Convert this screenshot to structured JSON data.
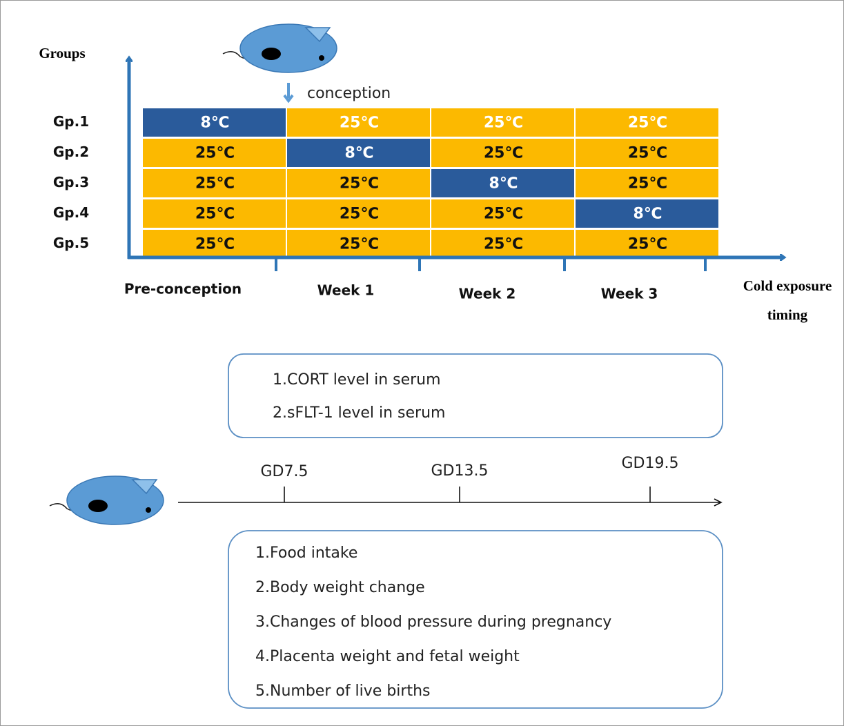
{
  "axes": {
    "y_label": "Groups",
    "x_label_lines": [
      "Cold exposure",
      "timing"
    ]
  },
  "conception": "conception",
  "groups": [
    "Gp.1",
    "Gp.2",
    "Gp.3",
    "Gp.4",
    "Gp.5"
  ],
  "periods": [
    "Pre-conception",
    "Week 1",
    "Week 2",
    "Week 3"
  ],
  "cells": [
    [
      {
        "text": "8℃",
        "fill": "#2a5b9b",
        "text_color": "#ffffff"
      },
      {
        "text": "25℃",
        "fill": "#fcb900",
        "text_color": "#ffffff"
      },
      {
        "text": "25℃",
        "fill": "#fcb900",
        "text_color": "#ffffff"
      },
      {
        "text": "25℃",
        "fill": "#fcb900",
        "text_color": "#ffffff"
      }
    ],
    [
      {
        "text": "25℃",
        "fill": "#fcb900",
        "text_color": "#111111"
      },
      {
        "text": "8℃",
        "fill": "#2a5b9b",
        "text_color": "#ffffff"
      },
      {
        "text": "25℃",
        "fill": "#fcb900",
        "text_color": "#111111"
      },
      {
        "text": "25℃",
        "fill": "#fcb900",
        "text_color": "#111111"
      }
    ],
    [
      {
        "text": "25℃",
        "fill": "#fcb900",
        "text_color": "#111111"
      },
      {
        "text": "25℃",
        "fill": "#fcb900",
        "text_color": "#111111"
      },
      {
        "text": "8℃",
        "fill": "#2a5b9b",
        "text_color": "#ffffff"
      },
      {
        "text": "25℃",
        "fill": "#fcb900",
        "text_color": "#111111"
      }
    ],
    [
      {
        "text": "25℃",
        "fill": "#fcb900",
        "text_color": "#111111"
      },
      {
        "text": "25℃",
        "fill": "#fcb900",
        "text_color": "#111111"
      },
      {
        "text": "25℃",
        "fill": "#fcb900",
        "text_color": "#111111"
      },
      {
        "text": "8℃",
        "fill": "#2a5b9b",
        "text_color": "#ffffff"
      }
    ],
    [
      {
        "text": "25℃",
        "fill": "#fcb900",
        "text_color": "#111111"
      },
      {
        "text": "25℃",
        "fill": "#fcb900",
        "text_color": "#111111"
      },
      {
        "text": "25℃",
        "fill": "#fcb900",
        "text_color": "#111111"
      },
      {
        "text": "25℃",
        "fill": "#fcb900",
        "text_color": "#111111"
      }
    ]
  ],
  "timeline": [
    "GD7.5",
    "GD13.5",
    "GD19.5"
  ],
  "box1": [
    "1.CORT level in serum",
    "2.sFLT-1 level in serum"
  ],
  "box2": [
    "1.Food intake",
    "2.Body weight change",
    "3.Changes of blood pressure during pregnancy",
    "4.Placenta weight and fetal weight",
    "5.Number of live births"
  ]
}
